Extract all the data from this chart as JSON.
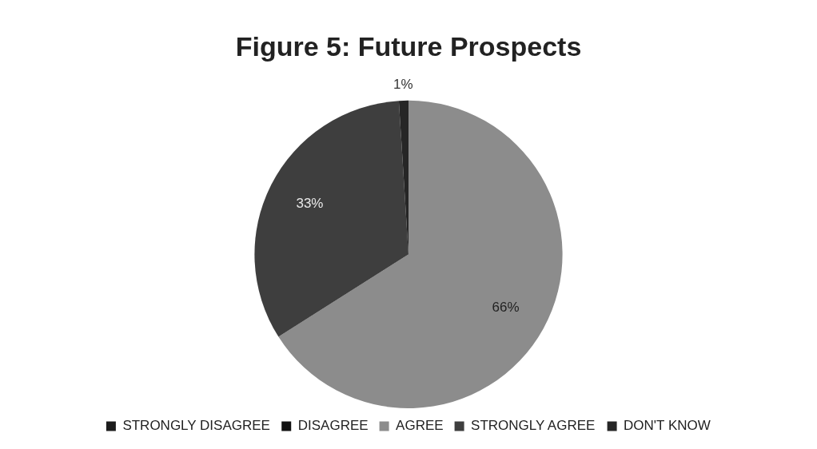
{
  "chart_data": {
    "type": "pie",
    "title": "Figure 5: Future Prospects",
    "categories": [
      "STRONGLY DISAGREE",
      "DISAGREE",
      "AGREE",
      "STRONGLY AGREE",
      "DON'T KNOW"
    ],
    "values": [
      0,
      0,
      66,
      33,
      1
    ],
    "colors": [
      "#1c1c1c",
      "#121212",
      "#8c8c8c",
      "#3e3e3e",
      "#262626"
    ],
    "value_labels": [
      null,
      null,
      "66%",
      "33%",
      "1%"
    ],
    "legend": "bottom"
  }
}
